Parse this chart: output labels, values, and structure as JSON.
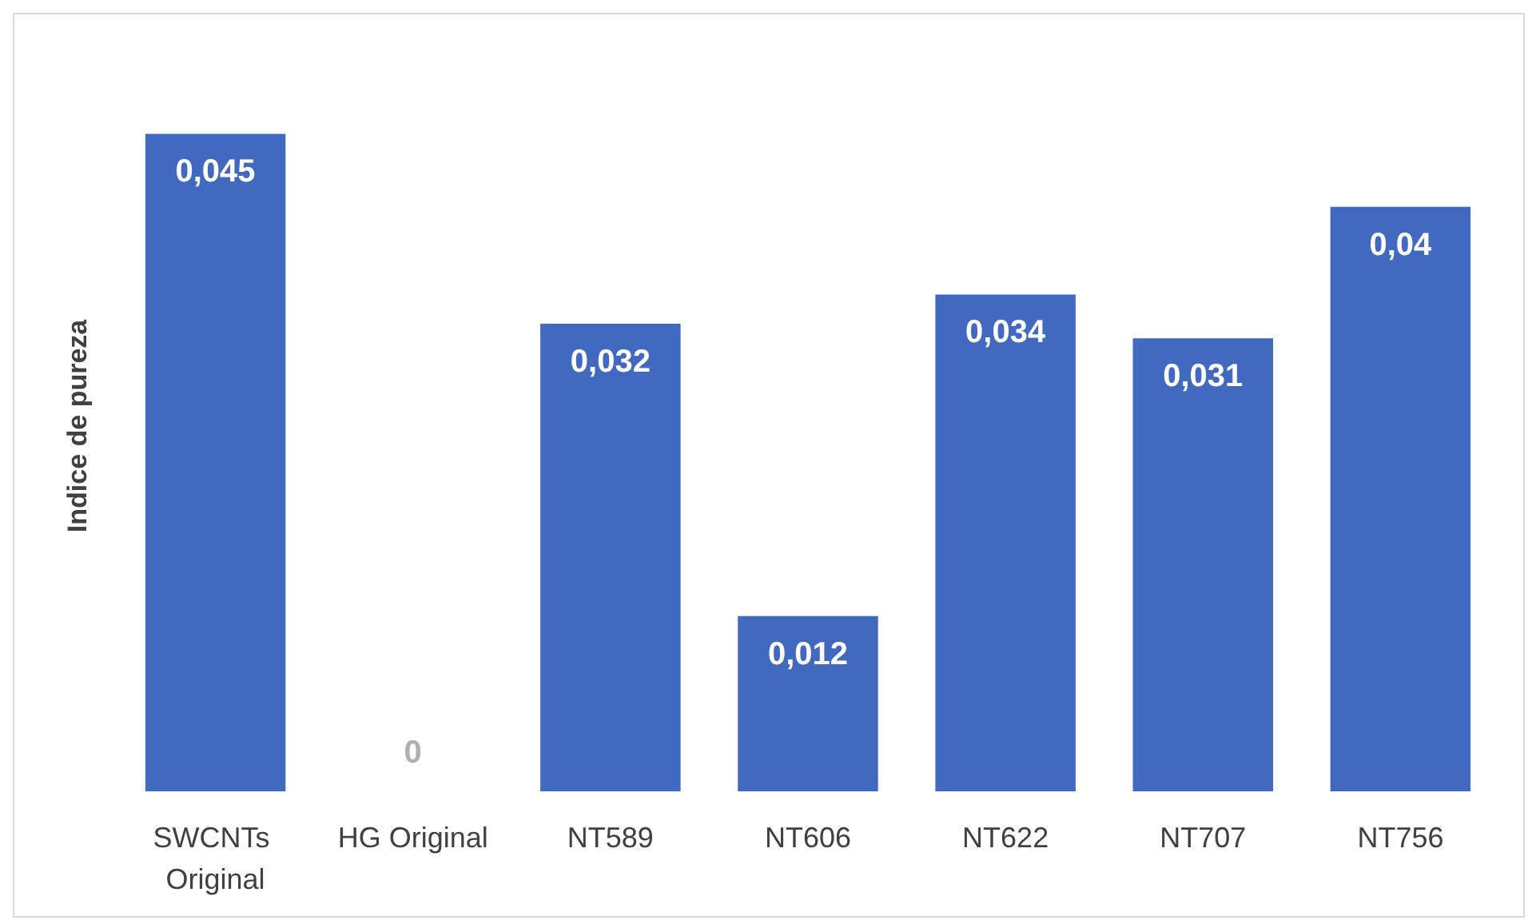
{
  "chart_data": {
    "type": "bar",
    "ylabel": "Indice de pureza",
    "categories": [
      "SWCNTs Original",
      "HG Original",
      "NT589",
      "NT606",
      "NT622",
      "NT707",
      "NT756"
    ],
    "values": [
      0.045,
      0,
      0.032,
      0.012,
      0.034,
      0.031,
      0.04
    ],
    "value_labels": [
      "0,045",
      "0",
      "0,032",
      "0,012",
      "0,034",
      "0,031",
      "0,04"
    ],
    "color": "#4169c0",
    "grid": false,
    "tick_labels": "x"
  }
}
